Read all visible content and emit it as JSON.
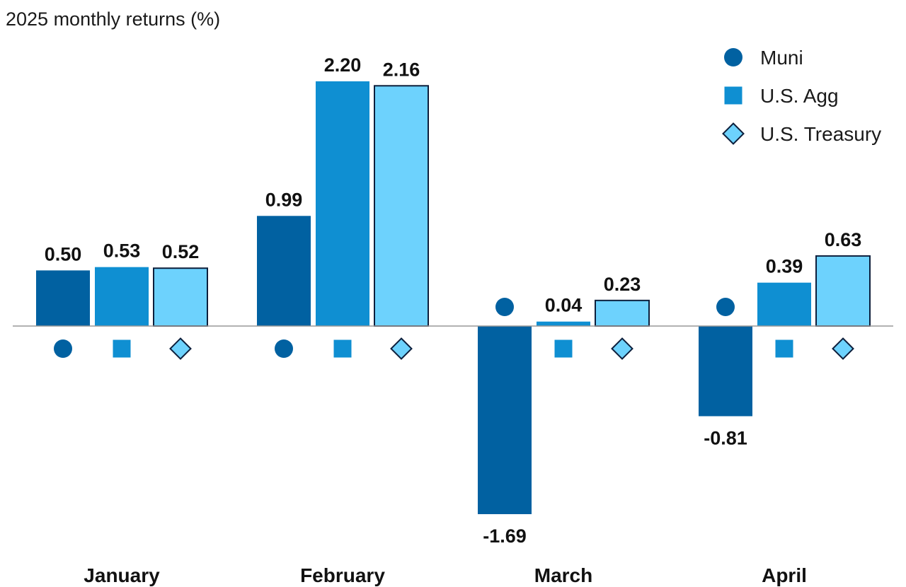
{
  "chart_data": {
    "type": "bar",
    "title": "2025 monthly returns (%)",
    "categories": [
      "January",
      "February",
      "March",
      "April"
    ],
    "series": [
      {
        "name": "Muni",
        "marker": "circle",
        "color": "#0161a1",
        "outline": false,
        "values": [
          0.5,
          0.99,
          -1.69,
          -0.81
        ],
        "labels": [
          "0.50",
          "0.99",
          "-1.69",
          "-0.81"
        ]
      },
      {
        "name": "U.S. Agg",
        "marker": "square",
        "color": "#0f8fd2",
        "outline": false,
        "values": [
          0.53,
          2.2,
          0.04,
          0.39
        ],
        "labels": [
          "0.53",
          "2.20",
          "0.04",
          "0.39"
        ]
      },
      {
        "name": "U.S. Treasury",
        "marker": "diamond",
        "color": "#6dd2fd",
        "outline": true,
        "values": [
          0.52,
          2.16,
          0.23,
          0.63
        ],
        "labels": [
          "0.52",
          "2.16",
          "0.23",
          "0.63"
        ]
      }
    ],
    "legend_position": "top-right",
    "ylim": [
      -1.69,
      2.2
    ],
    "grid": false,
    "outline_color": "#0d1f3c",
    "axis_color": "#999999"
  }
}
